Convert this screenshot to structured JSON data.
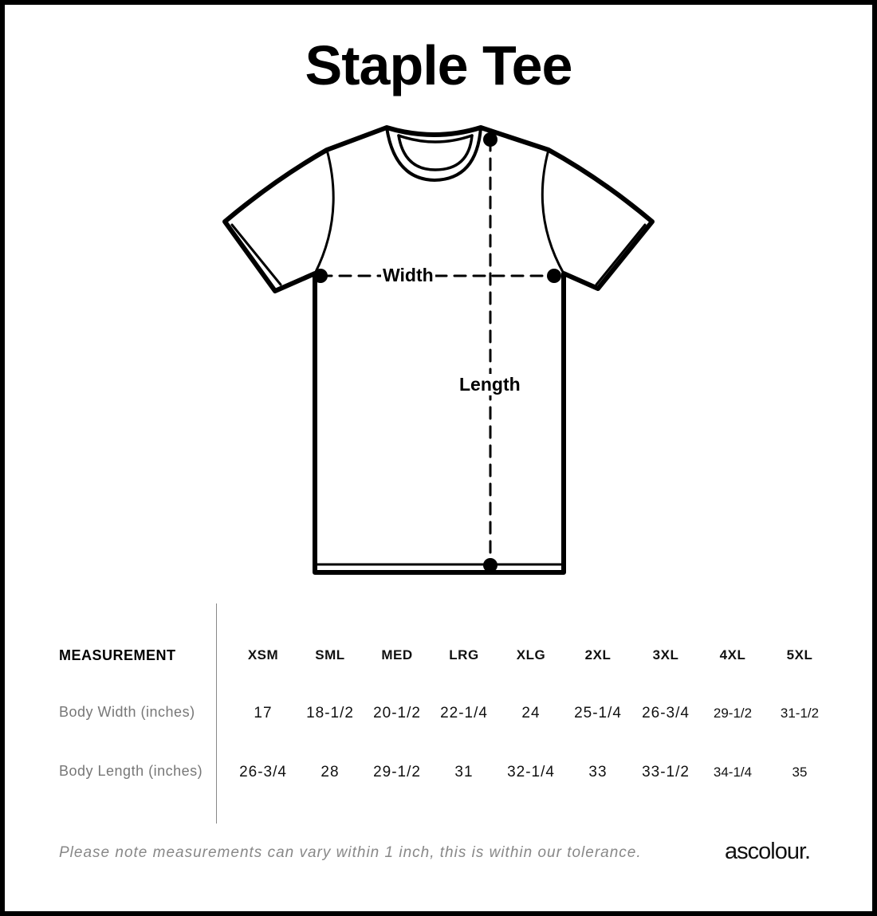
{
  "title": "Staple Tee",
  "diagram": {
    "width_label": "Width",
    "length_label": "Length"
  },
  "table": {
    "header_label": "MEASUREMENT",
    "sizes": [
      "XSM",
      "SML",
      "MED",
      "LRG",
      "XLG",
      "2XL",
      "3XL",
      "4XL",
      "5XL"
    ],
    "rows": [
      {
        "label": "Body Width (inches)",
        "values": [
          "17",
          "18-1/2",
          "20-1/2",
          "22-1/4",
          "24",
          "25-1/4",
          "26-3/4",
          "29-1/2",
          "31-1/2"
        ]
      },
      {
        "label": "Body Length (inches)",
        "values": [
          "26-3/4",
          "28",
          "29-1/2",
          "31",
          "32-1/4",
          "33",
          "33-1/2",
          "34-1/4",
          "35"
        ]
      }
    ]
  },
  "footer": {
    "note": "Please note measurements can vary within 1 inch, this is within our tolerance.",
    "brand": "ascolour."
  }
}
